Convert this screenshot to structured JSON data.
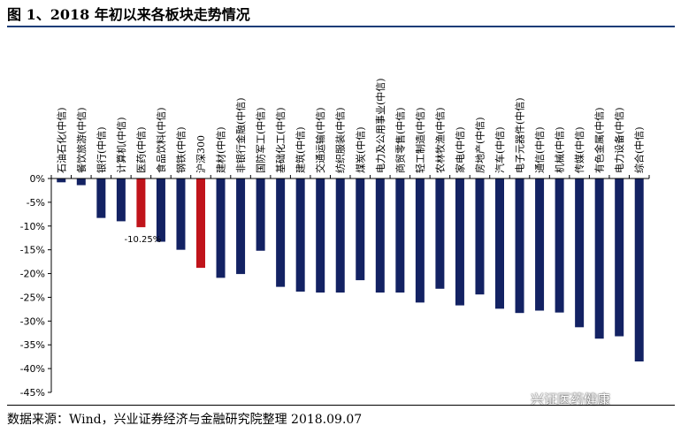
{
  "figure_title": "图 1、2018 年初以来各板块走势情况",
  "source_note": "数据来源：Wind，兴业证券经济与金融研究院整理 2018.09.07",
  "watermark": "兴证医药健康",
  "colors": {
    "bar_default": "#132263",
    "bar_highlight": "#c0141b",
    "title_rule": "#1a3c78"
  },
  "chart_data": {
    "type": "bar",
    "categories": [
      "石油石化(中信)",
      "餐饮旅游(中信)",
      "银行(中信)",
      "计算机(中信)",
      "医药(中信)",
      "食品饮料(中信)",
      "钢铁(中信)",
      "沪深300",
      "建材(中信)",
      "非银行金融(中信)",
      "国防军工(中信)",
      "基础化工(中信)",
      "建筑(中信)",
      "交通运输(中信)",
      "纺织服装(中信)",
      "煤炭(中信)",
      "电力及公用事业(中信)",
      "商贸零售(中信)",
      "轻工制造(中信)",
      "农林牧渔(中信)",
      "家电(中信)",
      "房地产(中信)",
      "汽车(中信)",
      "电子元器件(中信)",
      "通信(中信)",
      "机械(中信)",
      "传媒(中信)",
      "有色金属(中信)",
      "电力设备(中信)",
      "综合(中信)"
    ],
    "values": [
      -0.8,
      -1.4,
      -8.3,
      -9.0,
      -10.25,
      -13.3,
      -15.0,
      -18.8,
      -20.9,
      -20.1,
      -15.2,
      -22.8,
      -23.8,
      -24.0,
      -24.0,
      -21.4,
      -24.0,
      -24.0,
      -26.1,
      -23.2,
      -26.7,
      -24.4,
      -27.4,
      -28.3,
      -27.8,
      -28.2,
      -31.3,
      -33.7,
      -33.2,
      -38.5
    ],
    "highlight": [
      "医药(中信)",
      "沪深300"
    ],
    "annotations": [
      {
        "category": "医药(中信)",
        "text": "-10.25%"
      }
    ],
    "ylim": [
      -45,
      0
    ],
    "y_ticks": [
      "0%",
      "-5%",
      "-10%",
      "-15%",
      "-20%",
      "-25%",
      "-30%",
      "-35%",
      "-40%",
      "-45%"
    ],
    "xlabel": "",
    "ylabel": "",
    "grid": false
  }
}
